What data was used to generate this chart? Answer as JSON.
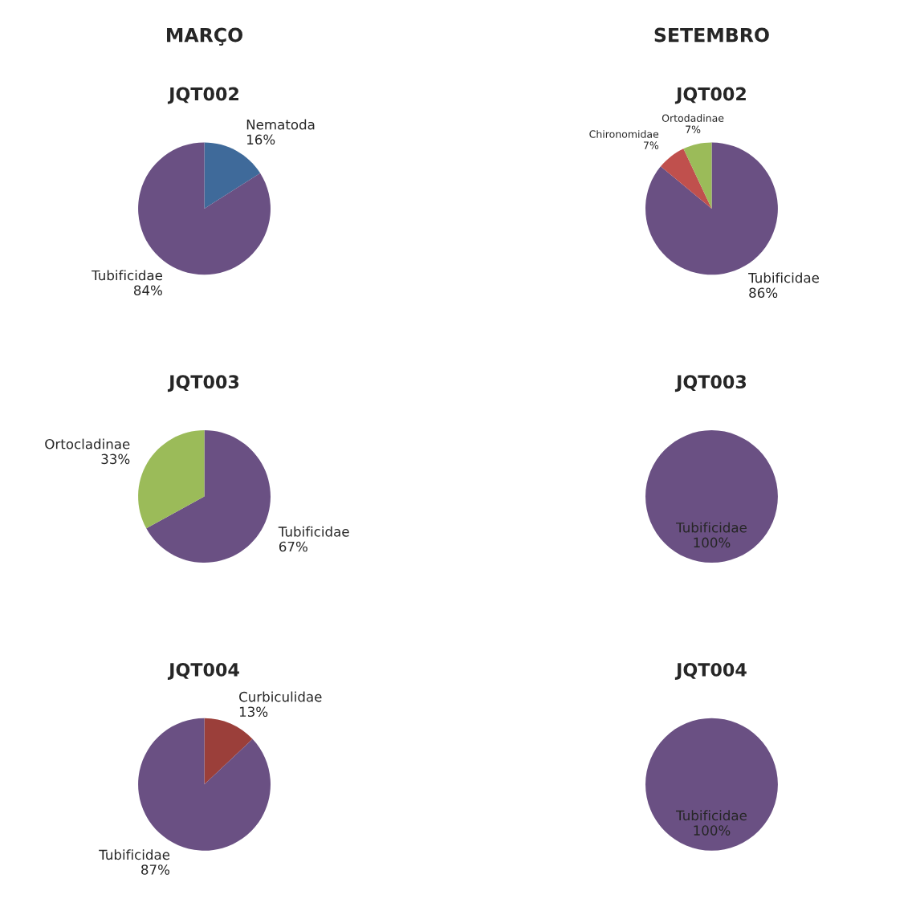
{
  "chart_data": [
    {
      "type": "pie",
      "title": "JQT002",
      "annotations": [
        "MARÇO"
      ],
      "categories": [
        "Nematoda",
        "Tubificidae"
      ],
      "values": [
        16,
        84
      ],
      "value_labels": [
        "16%",
        "84%"
      ],
      "colors": [
        "#3f6a9a",
        "#6a5083"
      ]
    },
    {
      "type": "pie",
      "title": "JQT002",
      "annotations": [
        "SETEMBRO"
      ],
      "categories": [
        "Tubificidae",
        "Chironomidae",
        "Ortodadinae"
      ],
      "values": [
        86,
        7,
        7
      ],
      "value_labels": [
        "86%",
        "7%",
        "7%"
      ],
      "colors": [
        "#6a5083",
        "#c0504d",
        "#9bbb59"
      ]
    },
    {
      "type": "pie",
      "title": "JQT003",
      "categories": [
        "Tubificidae",
        "Ortocladinae"
      ],
      "values": [
        67,
        33
      ],
      "value_labels": [
        "67%",
        "33%"
      ],
      "colors": [
        "#6a5083",
        "#9bbb59"
      ]
    },
    {
      "type": "pie",
      "title": "JQT003",
      "categories": [
        "Tubificidae"
      ],
      "values": [
        100
      ],
      "value_labels": [
        "100%"
      ],
      "colors": [
        "#6a5083"
      ]
    },
    {
      "type": "pie",
      "title": "JQT004",
      "categories": [
        "Curbiculidae",
        "Tubificidae"
      ],
      "values": [
        13,
        87
      ],
      "value_labels": [
        "13%",
        "87%"
      ],
      "colors": [
        "#9b3f3a",
        "#6a5083"
      ]
    },
    {
      "type": "pie",
      "title": "JQT004",
      "categories": [
        "Tubificidae"
      ],
      "values": [
        100
      ],
      "value_labels": [
        "100%"
      ],
      "colors": [
        "#6a5083"
      ]
    }
  ]
}
